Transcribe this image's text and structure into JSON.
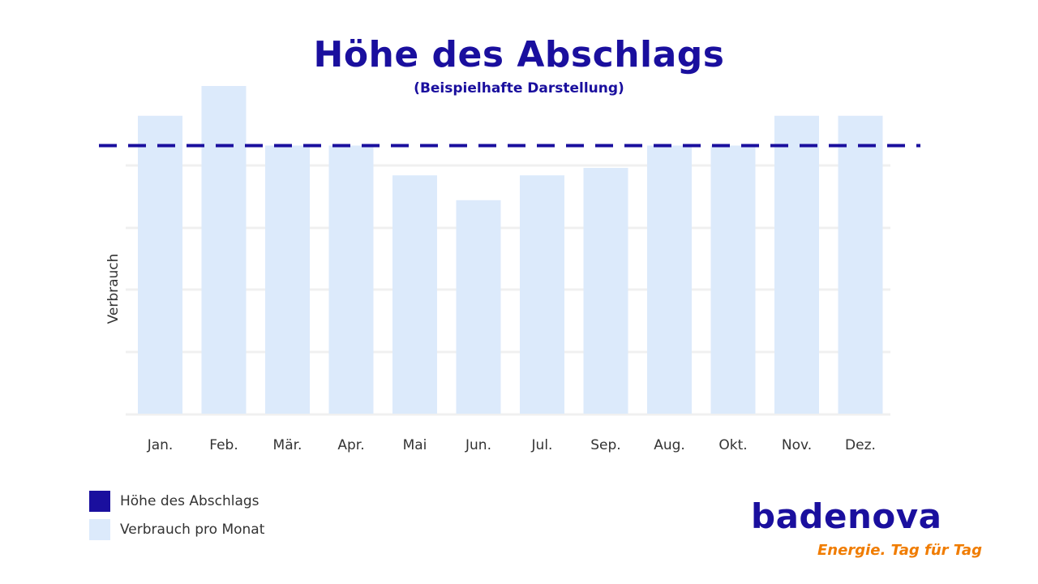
{
  "chart_data": {
    "type": "bar",
    "title": "Höhe des Abschlags",
    "subtitle": "(Beispielhafte Darstellung)",
    "ylabel": "Verbrauch",
    "categories": [
      "Jan.",
      "Feb.",
      "Mär.",
      "Apr.",
      "Mai",
      "Jun.",
      "Jul.",
      "Sep.",
      "Aug.",
      "Okt.",
      "Nov.",
      "Dez."
    ],
    "series": [
      {
        "name": "Verbrauch pro Monat",
        "values": [
          120,
          132,
          108,
          108,
          96,
          86,
          96,
          99,
          108,
          108,
          120,
          120
        ]
      }
    ],
    "reference_line": {
      "name": "Höhe des Abschlags",
      "value": 108,
      "style": "dashed"
    },
    "ylim": [
      0,
      132
    ],
    "grid": true,
    "legend": "bottom-left",
    "colors": {
      "bars": "#dceafb",
      "reference": "#1a0f9e",
      "grid": "#f0f0f0"
    }
  },
  "legend": {
    "items": [
      {
        "label": "Höhe des Abschlags",
        "color": "#1a0f9e"
      },
      {
        "label": "Verbrauch pro Monat",
        "color": "#dceafb"
      }
    ]
  },
  "branding": {
    "name": "badenova",
    "tagline": "Energie. Tag für Tag",
    "colors": {
      "name": "#1a0f9e",
      "tagline": "#f07c00"
    }
  }
}
